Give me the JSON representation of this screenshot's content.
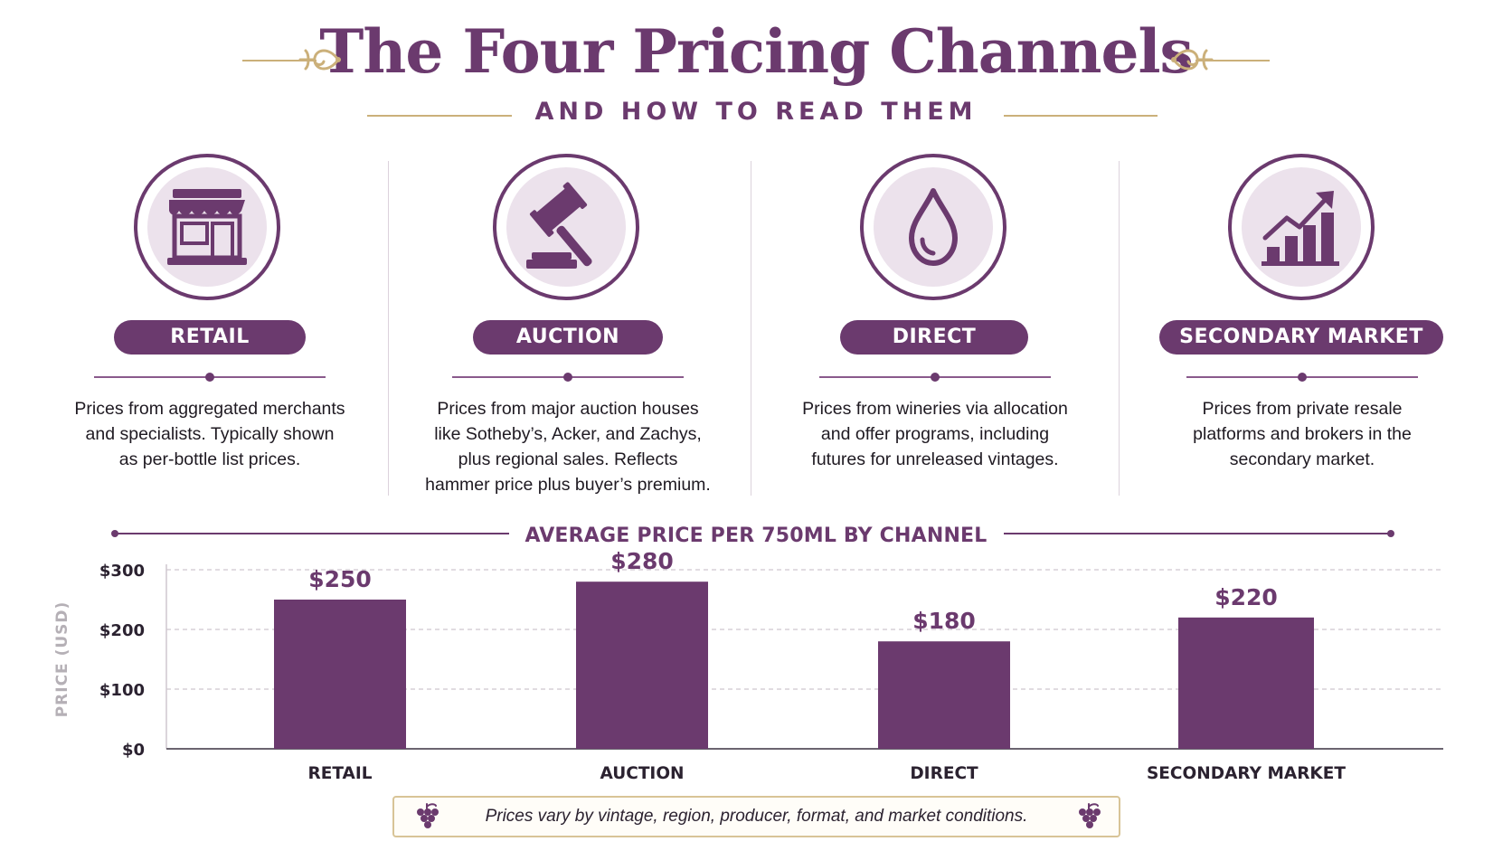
{
  "header": {
    "title": "The Four Pricing Channels",
    "subtitle": "AND HOW TO READ THEM"
  },
  "colors": {
    "brand_purple": "#6b3a6e",
    "light_purple": "#ece2ec",
    "gold": "#cbb07a"
  },
  "channels": [
    {
      "label": "RETAIL",
      "icon": "storefront-icon",
      "description": [
        "Prices from aggregated merchants",
        "and specialists. Typically shown",
        "as per-bottle list prices."
      ]
    },
    {
      "label": "AUCTION",
      "icon": "gavel-icon",
      "description": [
        "Prices from major auction houses",
        "like Sotheby’s, Acker, and Zachys,",
        "plus regional sales. Reflects",
        "hammer price plus buyer’s premium."
      ]
    },
    {
      "label": "DIRECT",
      "icon": "droplet-icon",
      "description": [
        "Prices from wineries via allocation",
        "and offer programs, including",
        "futures for unreleased vintages."
      ]
    },
    {
      "label": "SECONDARY MARKET",
      "icon": "growth-chart-icon",
      "description": [
        "Prices from private resale",
        "platforms and brokers in the",
        "secondary market."
      ]
    }
  ],
  "chart_data": {
    "type": "bar",
    "title": "AVERAGE PRICE PER 750ML BY CHANNEL",
    "categories": [
      "RETAIL",
      "AUCTION",
      "DIRECT",
      "SECONDARY MARKET"
    ],
    "values": [
      250,
      280,
      180,
      220
    ],
    "value_labels": [
      "$250",
      "$280",
      "$180",
      "$220"
    ],
    "ylabel": "PRICE (USD)",
    "ylim": [
      0,
      300
    ],
    "yticks": [
      0,
      100,
      200,
      300
    ],
    "ytick_labels": [
      "$0",
      "$100",
      "$200",
      "$300"
    ],
    "grid": true,
    "bar_color": "#6b3a6e"
  },
  "footer": {
    "note": "Prices vary by vintage, region, producer, format, and market conditions.",
    "icon": "grapes-icon"
  }
}
